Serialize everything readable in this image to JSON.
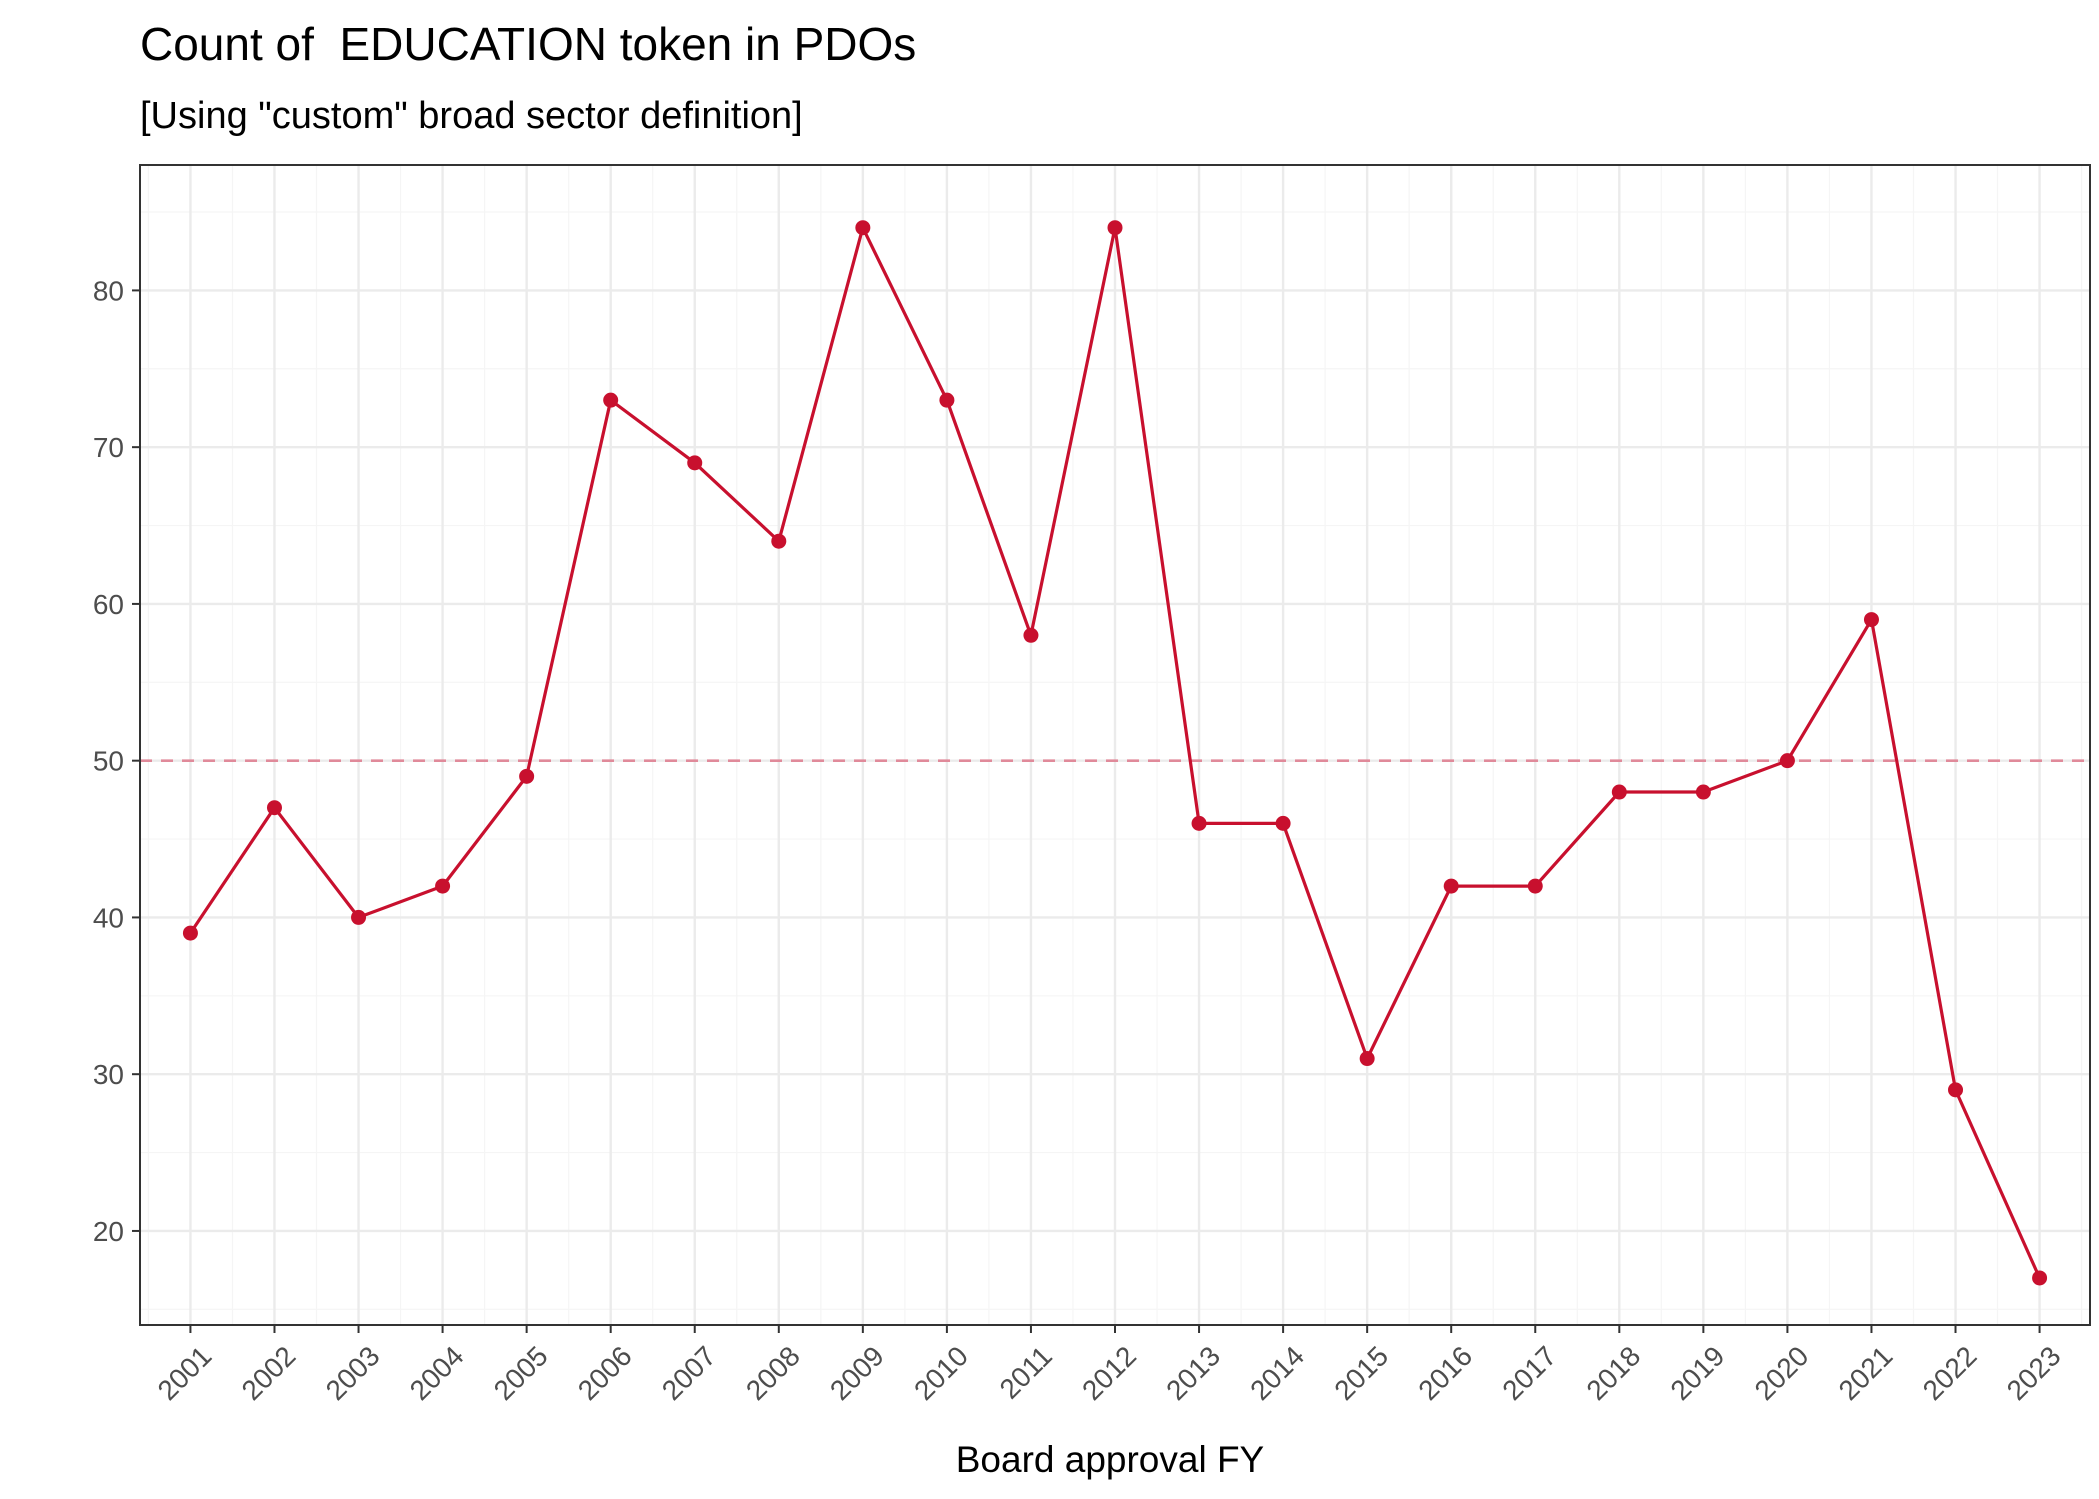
{
  "chart_data": {
    "type": "line",
    "title": "Count of  EDUCATION token in PDOs",
    "subtitle": "[Using \"custom\" broad sector definition]",
    "xlabel": "Board approval FY",
    "ylabel": "",
    "categories": [
      "2001",
      "2002",
      "2003",
      "2004",
      "2005",
      "2006",
      "2007",
      "2008",
      "2009",
      "2010",
      "2011",
      "2012",
      "2013",
      "2014",
      "2015",
      "2016",
      "2017",
      "2018",
      "2019",
      "2020",
      "2021",
      "2022",
      "2023"
    ],
    "series": [
      {
        "values": [
          39,
          47,
          40,
          42,
          49,
          73,
          69,
          64,
          84,
          73,
          58,
          84,
          46,
          46,
          31,
          42,
          42,
          48,
          48,
          50,
          59,
          29,
          17
        ]
      }
    ],
    "reference_line": {
      "y": 50,
      "style": "dashed"
    },
    "ylim": [
      14,
      88
    ],
    "yticks": [
      20,
      30,
      40,
      50,
      60,
      70,
      80
    ],
    "grid": true,
    "colors": {
      "series": "#C8102E",
      "reference": "#E08A9A",
      "grid_major": "#EBEBEB",
      "grid_minor": "#F5F5F5",
      "panel_border": "#333333"
    }
  }
}
